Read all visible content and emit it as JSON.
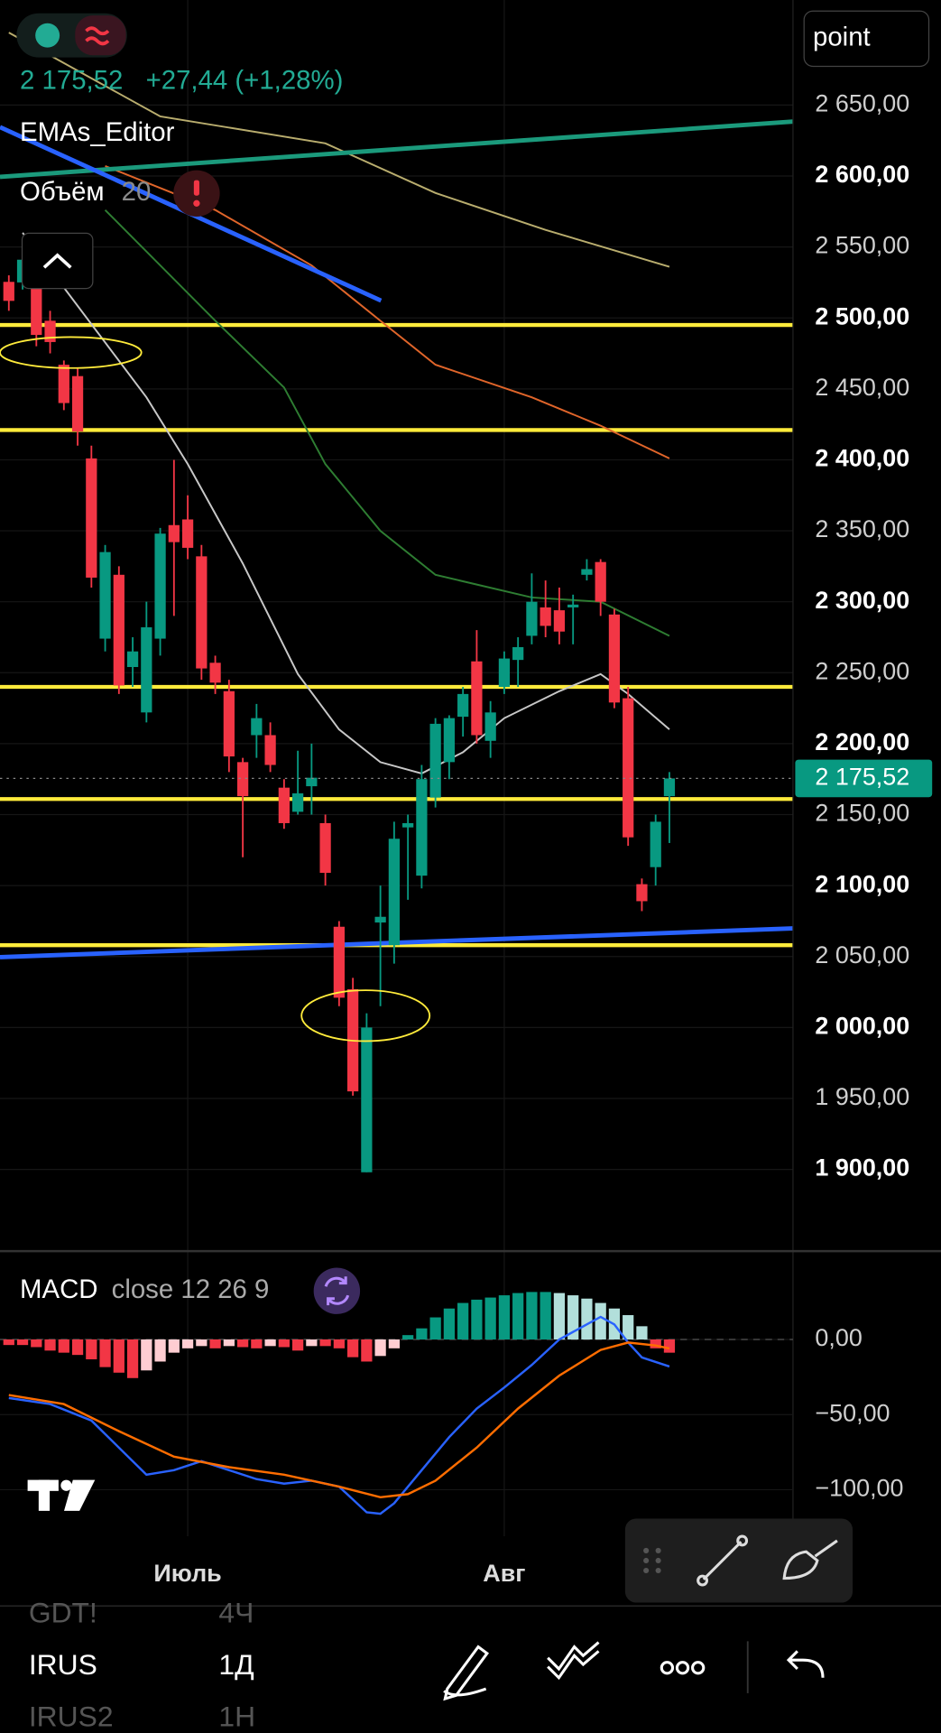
{
  "header": {
    "change": "+27,44 (+1,28%)",
    "indicator": "EMAs_Editor",
    "volume_label": "Объём",
    "volume_length": "20",
    "scale_mode": "point"
  },
  "chart_data": {
    "type": "candlestick",
    "up_color": "#089981",
    "down_color": "#f23645",
    "open": [
      2525.4,
      2525,
      2541,
      2498,
      2467,
      2459,
      2401,
      2274,
      2319,
      2254,
      2222,
      2274,
      2354,
      2358,
      2332,
      2257,
      2237,
      2187,
      2206,
      2206,
      2169,
      2152,
      2170,
      2144,
      2071,
      2027,
      1898,
      2074,
      2058,
      2141,
      2107,
      2162,
      2187,
      2219,
      2258,
      2202,
      2240,
      2259,
      2276,
      2296,
      2294,
      2296,
      2319,
      2328,
      2291,
      2232,
      2101,
      2113,
      2163
    ],
    "high": [
      2530,
      2545,
      2545,
      2505,
      2470,
      2465,
      2410,
      2340,
      2325,
      2275,
      2300,
      2352,
      2400,
      2375,
      2340,
      2262,
      2245,
      2190,
      2228,
      2215,
      2175,
      2195,
      2200,
      2150,
      2075,
      2035,
      2010,
      2100,
      2145,
      2150,
      2185,
      2218,
      2220,
      2240,
      2280,
      2230,
      2265,
      2275,
      2320,
      2315,
      2310,
      2305,
      2330,
      2330,
      2295,
      2240,
      2105,
      2150,
      2180
    ],
    "low": [
      2505,
      2520,
      2480,
      2475,
      2435,
      2410,
      2310,
      2265,
      2235,
      2240,
      2215,
      2262,
      2290,
      2330,
      2245,
      2235,
      2180,
      2120,
      2190,
      2180,
      2140,
      2150,
      2150,
      2100,
      2015,
      1952,
      1898,
      2015,
      2045,
      2090,
      2098,
      2155,
      2175,
      2205,
      2200,
      2190,
      2235,
      2240,
      2270,
      2275,
      2270,
      2270,
      2315,
      2290,
      2225,
      2128,
      2082,
      2100,
      2130
    ],
    "close": [
      2512,
      2541,
      2488,
      2483,
      2440,
      2420,
      2317,
      2335,
      2241,
      2265,
      2282,
      2348,
      2342,
      2338,
      2253,
      2243,
      2191,
      2163,
      2218,
      2185,
      2144,
      2165,
      2176,
      2109,
      2021,
      1955,
      2000,
      2078,
      2133,
      2144,
      2175,
      2214,
      2218,
      2235,
      2206,
      2222,
      2260,
      2268,
      2300,
      2283,
      2279,
      2298,
      2323,
      2300,
      2229,
      2134,
      2089,
      2145,
      2175.52
    ],
    "ylim": [
      1844,
      2724
    ],
    "yticks": [
      {
        "value": 2650,
        "label": "2 650,00"
      },
      {
        "value": 2600,
        "label": "2 600,00"
      },
      {
        "value": 2550,
        "label": "2 550,00"
      },
      {
        "value": 2500,
        "label": "2 500,00"
      },
      {
        "value": 2450,
        "label": "2 450,00"
      },
      {
        "value": 2400,
        "label": "2 400,00"
      },
      {
        "value": 2350,
        "label": "2 350,00"
      },
      {
        "value": 2300,
        "label": "2 300,00"
      },
      {
        "value": 2250,
        "label": "2 250,00"
      },
      {
        "value": 2200,
        "label": "2 200,00"
      },
      {
        "value": 2150,
        "label": "2 150,00"
      },
      {
        "value": 2100,
        "label": "2 100,00"
      },
      {
        "value": 2050,
        "label": "2 050,00"
      },
      {
        "value": 2000,
        "label": "2 000,00"
      },
      {
        "value": 1950,
        "label": "1 950,00"
      },
      {
        "value": 1900,
        "label": "1 900,00"
      }
    ],
    "last_price": {
      "value": 2175.52,
      "label": "2 175,52"
    },
    "levels": {
      "color": "#ffeb3b",
      "values": [
        2495,
        2421,
        2240,
        2161,
        2058
      ]
    },
    "moving_averages": [
      {
        "color": "#c8c8c8",
        "x": [
          1,
          10,
          13,
          17,
          21,
          24,
          27,
          30,
          33,
          36,
          40,
          43,
          45,
          48
        ],
        "values": [
          2560,
          2444,
          2397,
          2327,
          2249,
          2210,
          2187,
          2179,
          2194,
          2218,
          2237,
          2249,
          2235,
          2210
        ]
      },
      {
        "color": "#2e7d32",
        "x": [
          7,
          15,
          20,
          23,
          27,
          31,
          38,
          43,
          48
        ],
        "values": [
          2576,
          2498,
          2451,
          2397,
          2350,
          2319,
          2303,
          2300,
          2276
        ]
      },
      {
        "color": "#e0652a",
        "x": [
          7,
          15,
          22,
          27,
          31,
          38,
          43,
          48
        ],
        "values": [
          2607,
          2576,
          2537,
          2498,
          2467,
          2444,
          2424,
          2401
        ]
      },
      {
        "color": "#b9ad6e",
        "x": [
          0,
          11,
          23,
          31,
          39,
          48
        ],
        "values": [
          2701,
          2642,
          2623,
          2588,
          2562,
          2536
        ]
      }
    ],
    "x_labels": [
      {
        "value": 13,
        "label": "Июль"
      },
      {
        "value": 36,
        "label": "Авг"
      }
    ],
    "macd": {
      "title": "MACD",
      "params": "close 12 26 9",
      "ylim": [
        -131,
        56.6
      ],
      "yticks": [
        {
          "value": 0,
          "label": "0,00"
        },
        {
          "value": -50,
          "label": "−50,00"
        },
        {
          "value": -100,
          "label": "−100,00"
        }
      ],
      "histogram": {
        "colors": [
          "#089981",
          "#b2dfdb",
          "#f23645",
          "#ffcdd2"
        ],
        "values": [
          -3.7,
          -3.7,
          -5.1,
          -7.4,
          -8.8,
          -10.3,
          -13.2,
          -18.4,
          -22.1,
          -25.7,
          -20.6,
          -14.7,
          -8.8,
          -5.9,
          -4.4,
          -5.9,
          -4.4,
          -5.1,
          -5.9,
          -4.4,
          -5.1,
          -7.4,
          -4.4,
          -4.4,
          -5.9,
          -11.8,
          -14.7,
          -11,
          -5.9,
          2.9,
          7.4,
          14.7,
          20.6,
          24.3,
          26.5,
          27.9,
          29.4,
          30.9,
          31.6,
          31.6,
          30.9,
          29.4,
          27.2,
          24.3,
          20.6,
          16.2,
          8.8,
          -5.9,
          -8.8
        ]
      },
      "lines": [
        {
          "color": "#2962ff",
          "x": [
            0,
            3,
            6,
            8,
            10,
            12,
            14,
            16,
            18,
            20,
            22,
            24,
            26,
            27,
            28,
            30,
            32,
            34,
            36,
            38,
            40,
            42,
            43,
            44,
            45,
            46,
            48
          ],
          "values": [
            -39,
            -43,
            -54,
            -72,
            -90,
            -87,
            -81,
            -87,
            -93,
            -96,
            -94,
            -98,
            -115,
            -116,
            -109,
            -87,
            -65,
            -46,
            -32,
            -17,
            0,
            10,
            15,
            10,
            -2,
            -12,
            -18
          ]
        },
        {
          "color": "#ff6d00",
          "x": [
            0,
            4,
            8,
            12,
            16,
            20,
            24,
            27,
            29,
            31,
            34,
            37,
            40,
            43,
            45,
            47,
            48
          ],
          "values": [
            -37,
            -43,
            -61,
            -78,
            -85,
            -90,
            -98,
            -105,
            -103,
            -94,
            -72,
            -46,
            -24,
            -7,
            -2,
            -4,
            -6
          ]
        }
      ]
    }
  },
  "symbols": [
    {
      "name": "GDT!",
      "interval": "4Ч"
    },
    {
      "name": "IRUS",
      "interval": "1Д"
    },
    {
      "name": "IRUS2",
      "interval": "1Н"
    }
  ]
}
